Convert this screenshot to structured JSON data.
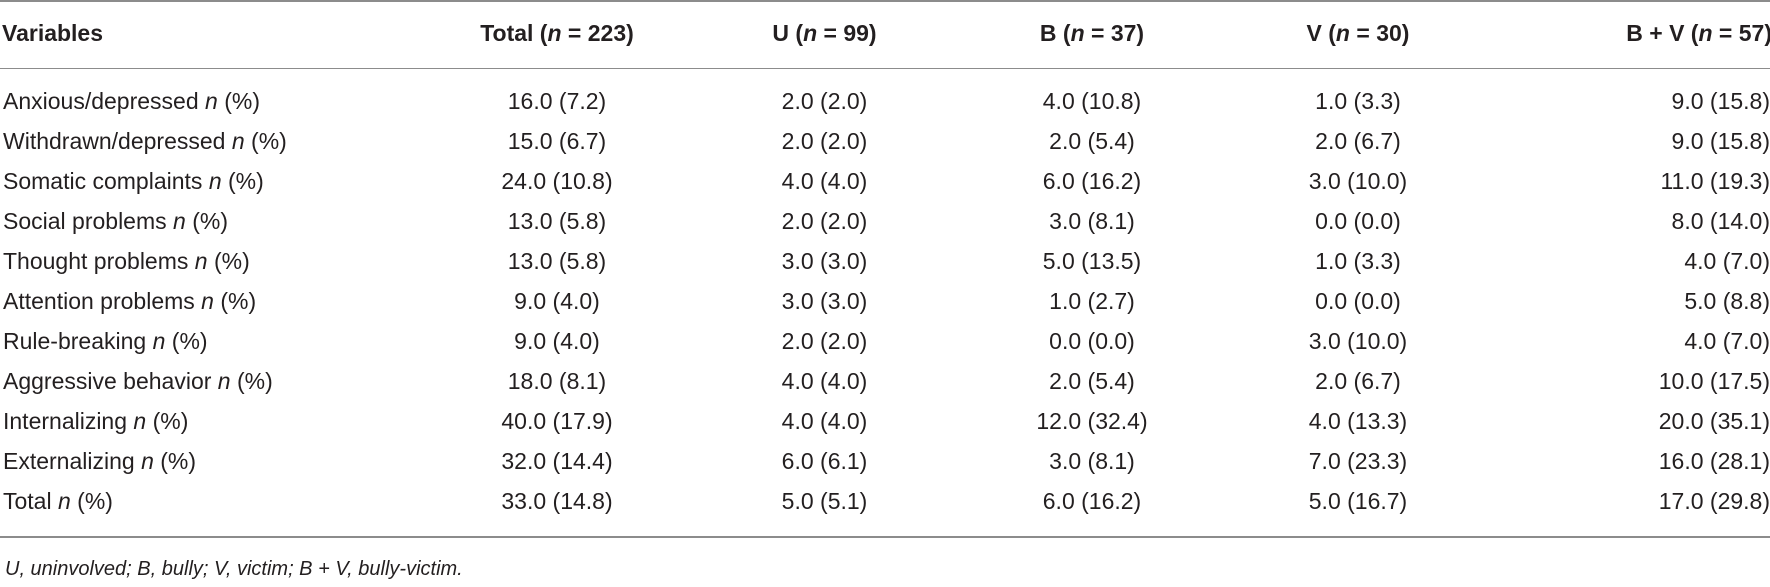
{
  "table": {
    "headers": [
      "Variables",
      "Total (n = 223)",
      "U (n = 99)",
      "B (n = 37)",
      "V (n = 30)",
      "B + V (n = 57)"
    ],
    "rows": [
      {
        "variable": "Anxious/depressed n (%)",
        "total": "16.0 (7.2)",
        "u": "2.0 (2.0)",
        "b": "4.0 (10.8)",
        "v": "1.0 (3.3)",
        "bv": "9.0 (15.8)"
      },
      {
        "variable": "Withdrawn/depressed n (%)",
        "total": "15.0 (6.7)",
        "u": "2.0 (2.0)",
        "b": "2.0 (5.4)",
        "v": "2.0 (6.7)",
        "bv": "9.0 (15.8)"
      },
      {
        "variable": "Somatic complaints n (%)",
        "total": "24.0 (10.8)",
        "u": "4.0 (4.0)",
        "b": "6.0 (16.2)",
        "v": "3.0 (10.0)",
        "bv": "11.0 (19.3)"
      },
      {
        "variable": "Social problems n (%)",
        "total": "13.0 (5.8)",
        "u": "2.0 (2.0)",
        "b": "3.0 (8.1)",
        "v": "0.0 (0.0)",
        "bv": "8.0 (14.0)"
      },
      {
        "variable": "Thought problems n (%)",
        "total": "13.0 (5.8)",
        "u": "3.0 (3.0)",
        "b": "5.0 (13.5)",
        "v": "1.0 (3.3)",
        "bv": "4.0 (7.0)"
      },
      {
        "variable": "Attention problems n (%)",
        "total": "9.0 (4.0)",
        "u": "3.0 (3.0)",
        "b": "1.0 (2.7)",
        "v": "0.0 (0.0)",
        "bv": "5.0 (8.8)"
      },
      {
        "variable": "Rule-breaking n (%)",
        "total": "9.0 (4.0)",
        "u": "2.0 (2.0)",
        "b": "0.0 (0.0)",
        "v": "3.0 (10.0)",
        "bv": "4.0 (7.0)"
      },
      {
        "variable": "Aggressive behavior n (%)",
        "total": "18.0 (8.1)",
        "u": "4.0 (4.0)",
        "b": "2.0 (5.4)",
        "v": "2.0 (6.7)",
        "bv": "10.0 (17.5)"
      },
      {
        "variable": "Internalizing n (%)",
        "total": "40.0 (17.9)",
        "u": "4.0 (4.0)",
        "b": "12.0 (32.4)",
        "v": "4.0 (13.3)",
        "bv": "20.0 (35.1)"
      },
      {
        "variable": "Externalizing n (%)",
        "total": "32.0 (14.4)",
        "u": "6.0 (6.1)",
        "b": "3.0 (8.1)",
        "v": "7.0 (23.3)",
        "bv": "16.0 (28.1)"
      },
      {
        "variable": "Total n (%)",
        "total": "33.0 (14.8)",
        "u": "5.0 (5.1)",
        "b": "6.0 (16.2)",
        "v": "5.0 (16.7)",
        "bv": "17.0 (29.8)"
      }
    ]
  },
  "footnote": "U, uninvolved; B, bully; V, victim; B + V, bully-victim."
}
